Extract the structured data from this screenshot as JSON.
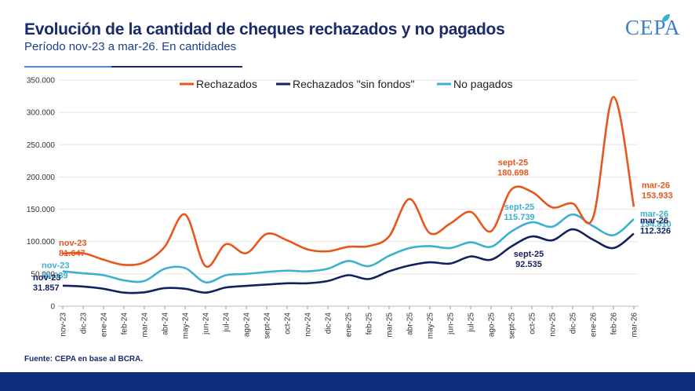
{
  "header": {
    "title": "Evolución de la cantidad de cheques rechazados y no pagados",
    "subtitle": "Período nov-23 a mar-26. En cantidades",
    "logo_text": "CEPA"
  },
  "footer": {
    "source": "Fuente: CEPA en base al BCRA."
  },
  "colors": {
    "rechazados": "#e8561d",
    "sin_fondos": "#13215f",
    "no_pagados": "#3bb0d0",
    "title": "#1b2a6b",
    "footer_bar": "#0c2d7a"
  },
  "chart_data": {
    "type": "line",
    "categories": [
      "nov-23",
      "dic-23",
      "ene-24",
      "feb-24",
      "mar-24",
      "abr-24",
      "may-24",
      "jun-24",
      "jul-24",
      "ago-24",
      "sept-24",
      "oct-24",
      "nov-24",
      "dic-24",
      "ene-25",
      "feb-25",
      "mar-25",
      "abr-25",
      "may-25",
      "jun-25",
      "jul-25",
      "ago-25",
      "sept-25",
      "oct-25",
      "nov-25",
      "dic-25",
      "ene-26",
      "feb-26",
      "mar-26"
    ],
    "y_ticks": [
      "0",
      "50.000",
      "100.000",
      "150.000",
      "200.000",
      "250.000",
      "300.000",
      "350.000"
    ],
    "ylim": [
      0,
      350000
    ],
    "legend_position": "top",
    "series": [
      {
        "name": "Rechazados",
        "color": "#e8561d",
        "values": [
          81647,
          82000,
          72000,
          64000,
          68000,
          92000,
          142000,
          62000,
          96000,
          82000,
          112000,
          102000,
          88000,
          85000,
          92000,
          93000,
          108000,
          166000,
          113000,
          128000,
          146000,
          116000,
          180698,
          177000,
          153000,
          159000,
          137000,
          324000,
          153933
        ]
      },
      {
        "name": "Rechazados \"sin fondos\"",
        "color": "#13215f",
        "values": [
          31857,
          30500,
          27000,
          21000,
          21500,
          28000,
          27000,
          21000,
          29000,
          31500,
          33500,
          35500,
          35500,
          39000,
          48000,
          42000,
          54000,
          63000,
          68000,
          66000,
          77000,
          72000,
          92535,
          108000,
          102000,
          119000,
          103000,
          90000,
          112326
        ]
      },
      {
        "name": "No pagados",
        "color": "#3bb0d0",
        "values": [
          54039,
          51000,
          48000,
          40000,
          39000,
          58000,
          59000,
          37000,
          48000,
          50000,
          53000,
          55000,
          54000,
          58000,
          70000,
          62000,
          78000,
          90000,
          93000,
          90000,
          99000,
          92000,
          115739,
          130000,
          123000,
          142000,
          124000,
          110000,
          134810
        ]
      }
    ],
    "annotations": [
      {
        "series": 0,
        "index": 0,
        "period": "nov-23",
        "value": "81.647"
      },
      {
        "series": 2,
        "index": 0,
        "period": "nov-23",
        "value": "54.039"
      },
      {
        "series": 1,
        "index": 0,
        "period": "nov-23",
        "value": "31.857"
      },
      {
        "series": 0,
        "index": 22,
        "period": "sept-25",
        "value": "180.698"
      },
      {
        "series": 2,
        "index": 22,
        "period": "sept-25",
        "value": "115.739"
      },
      {
        "series": 1,
        "index": 22,
        "period": "sept-25",
        "value": "92.535"
      },
      {
        "series": 0,
        "index": 28,
        "period": "mar-26",
        "value": "153.933"
      },
      {
        "series": 2,
        "index": 28,
        "period": "mar-26",
        "value": "134.810"
      },
      {
        "series": 1,
        "index": 28,
        "period": "mar-26",
        "value": "112.326"
      }
    ]
  }
}
